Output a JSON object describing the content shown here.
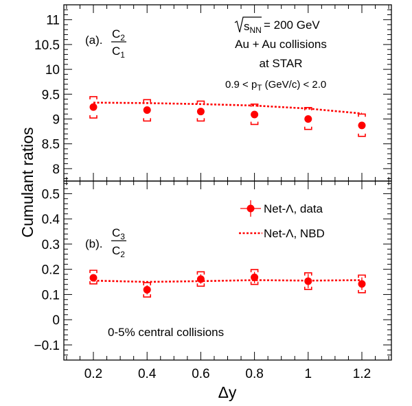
{
  "chart_data": [
    {
      "type": "scatter",
      "panel": "(a).",
      "ratio_label": {
        "num": "C",
        "num_sub": "2",
        "den": "C",
        "den_sub": "1"
      },
      "ylim": [
        7.75,
        11.3
      ],
      "yticks": [
        8,
        8.5,
        9,
        9.5,
        10,
        10.5,
        11
      ],
      "ytick_labels": [
        "8",
        "8.5",
        "9",
        "9.5",
        "10",
        "10.5",
        "11"
      ],
      "x": [
        0.2,
        0.4,
        0.6,
        0.8,
        1.0,
        1.2
      ],
      "series": [
        {
          "name": "Net-Λ, data",
          "values": [
            9.24,
            9.18,
            9.15,
            9.09,
            9.0,
            8.87
          ],
          "sys_low": [
            9.02,
            8.96,
            8.96,
            8.89,
            8.79,
            8.65
          ],
          "sys_high": [
            9.45,
            9.39,
            9.36,
            9.3,
            9.23,
            9.1
          ]
        },
        {
          "name": "Net-Λ, NBD",
          "values": [
            9.33,
            9.32,
            9.3,
            9.27,
            9.21,
            9.11
          ]
        }
      ],
      "annotations": [
        "= 200 GeV",
        "Au + Au collisions",
        "at STAR",
        "0.9 < p",
        "(GeV/c) < 2.0"
      ],
      "sqrt_label": "s",
      "sqrt_sub": "NN",
      "pt_sub": "T"
    },
    {
      "type": "scatter",
      "panel": "(b).",
      "ratio_label": {
        "num": "C",
        "num_sub": "3",
        "den": "C",
        "den_sub": "2"
      },
      "ylim": [
        -0.16,
        0.55
      ],
      "yticks": [
        -0.1,
        0,
        0.1,
        0.2,
        0.3,
        0.4,
        0.5
      ],
      "ytick_labels": [
        "−0.1",
        "0",
        "0.1",
        "0.2",
        "0.3",
        "0.4",
        "0.5"
      ],
      "x": [
        0.2,
        0.4,
        0.6,
        0.8,
        1.0,
        1.2
      ],
      "series": [
        {
          "name": "Net-Λ, data",
          "values": [
            0.166,
            0.119,
            0.161,
            0.168,
            0.153,
            0.142
          ],
          "sys_low": [
            0.142,
            0.09,
            0.133,
            0.14,
            0.12,
            0.107
          ],
          "sys_high": [
            0.196,
            0.147,
            0.19,
            0.199,
            0.186,
            0.177
          ],
          "stat_low": [
            0.152,
            0.1,
            0.143,
            0.145,
            0.125,
            0.118
          ],
          "stat_high": [
            0.18,
            0.137,
            0.18,
            0.19,
            0.182,
            0.168
          ]
        },
        {
          "name": "Net-Λ, NBD",
          "values": [
            0.155,
            0.15,
            0.153,
            0.157,
            0.155,
            0.157
          ]
        }
      ],
      "annotations": [
        "0-5% central collisions"
      ],
      "legend": [
        "Net-Λ, data",
        "Net-Λ, NBD"
      ]
    }
  ],
  "axes": {
    "xlabel": "Δy",
    "ylabel": "Cumulant ratios",
    "xlim": [
      0.09,
      1.31
    ],
    "xticks": [
      0.2,
      0.4,
      0.6,
      0.8,
      1.0,
      1.2
    ],
    "xtick_labels": [
      "0.2",
      "0.4",
      "0.6",
      "0.8",
      "1",
      "1.2"
    ]
  },
  "colors": {
    "data": "#ff0000",
    "axes": "#000000"
  }
}
